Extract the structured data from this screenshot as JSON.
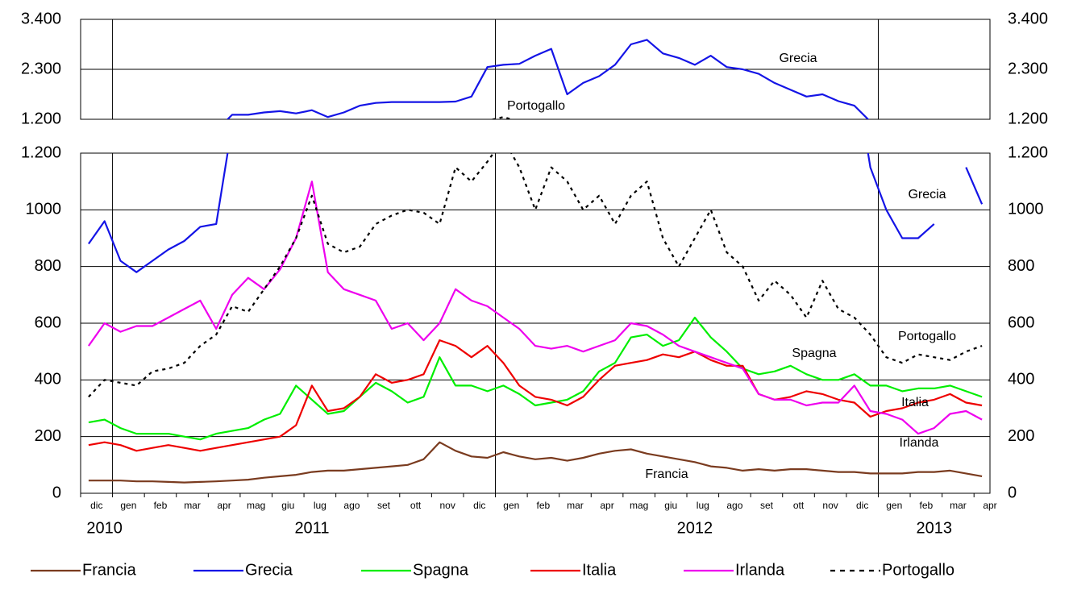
{
  "chart_data": {
    "type": "line",
    "categories": [
      "dic",
      null,
      "gen",
      null,
      "feb",
      null,
      "mar",
      null,
      "apr",
      null,
      "mag",
      null,
      "giu",
      null,
      "lug",
      null,
      "ago",
      null,
      "set",
      null,
      "ott",
      null,
      "nov",
      null,
      "dic",
      null,
      "gen",
      null,
      "feb",
      null,
      "mar",
      null,
      "apr",
      null,
      "mag",
      null,
      "giu",
      null,
      "lug",
      null,
      "ago",
      null,
      "set",
      null,
      "ott",
      null,
      "nov",
      null,
      "dic",
      null,
      "gen",
      null,
      "feb",
      null,
      "mar",
      null,
      "apr"
    ],
    "year_labels": [
      "2010",
      "2011",
      "2012",
      "2013"
    ],
    "panels": [
      {
        "ylim": [
          1200,
          3400
        ],
        "yticks": [
          {
            "value": 1200,
            "label": "1.200"
          },
          {
            "value": 2300,
            "label": "2.300"
          },
          {
            "value": 3400,
            "label": "3.400"
          }
        ]
      },
      {
        "ylim": [
          0,
          1200
        ],
        "yticks": [
          0,
          200,
          400,
          600,
          800,
          1000,
          {
            "value": 1200,
            "label": "1.200"
          }
        ]
      }
    ],
    "grid": true,
    "legend": "bottom",
    "series": [
      {
        "name": "Francia",
        "color": "#7a3b1f",
        "dashed": false,
        "values": [
          45,
          45,
          45,
          42,
          42,
          40,
          38,
          40,
          42,
          45,
          48,
          55,
          60,
          65,
          75,
          80,
          80,
          85,
          90,
          95,
          100,
          120,
          180,
          150,
          130,
          125,
          145,
          130,
          120,
          125,
          115,
          125,
          140,
          150,
          155,
          140,
          130,
          120,
          110,
          95,
          90,
          80,
          85,
          80,
          85,
          85,
          80,
          75,
          75,
          70,
          70,
          70,
          75,
          75,
          80,
          70,
          60
        ]
      },
      {
        "name": "Grecia",
        "color": "#1414e6",
        "dashed": false,
        "values": [
          880,
          960,
          820,
          780,
          820,
          860,
          890,
          940,
          950,
          1300,
          1300,
          1350,
          1380,
          1330,
          1400,
          1250,
          1350,
          1500,
          1560,
          1580,
          1580,
          1580,
          1580,
          1590,
          1700,
          2350,
          2400,
          2420,
          2600,
          2750,
          1750,
          2000,
          2150,
          2400,
          2850,
          2950,
          2650,
          2550,
          2400,
          2600,
          2350,
          2300,
          2200,
          2000,
          1850,
          1700,
          1750,
          1600,
          1500,
          1150,
          1000,
          900,
          900,
          950,
          null,
          1150,
          1020
        ]
      },
      {
        "name": "Spagna",
        "color": "#00ee00",
        "dashed": false,
        "values": [
          250,
          260,
          230,
          210,
          210,
          210,
          200,
          190,
          210,
          220,
          230,
          260,
          280,
          380,
          330,
          280,
          290,
          340,
          390,
          360,
          320,
          340,
          480,
          380,
          380,
          360,
          380,
          350,
          310,
          320,
          330,
          360,
          430,
          460,
          550,
          560,
          520,
          540,
          620,
          550,
          500,
          440,
          420,
          430,
          450,
          420,
          400,
          400,
          420,
          380,
          380,
          360,
          370,
          370,
          380,
          360,
          340
        ]
      },
      {
        "name": "Italia",
        "color": "#ee0000",
        "dashed": false,
        "values": [
          170,
          180,
          170,
          150,
          160,
          170,
          160,
          150,
          160,
          170,
          180,
          190,
          200,
          240,
          380,
          290,
          300,
          340,
          420,
          390,
          400,
          420,
          540,
          520,
          480,
          520,
          460,
          380,
          340,
          330,
          310,
          340,
          400,
          450,
          460,
          470,
          490,
          480,
          500,
          470,
          450,
          450,
          350,
          330,
          340,
          360,
          350,
          330,
          320,
          270,
          290,
          300,
          320,
          330,
          350,
          320,
          310
        ]
      },
      {
        "name": "Irlanda",
        "color": "#ee00ee",
        "dashed": false,
        "values": [
          520,
          600,
          570,
          590,
          590,
          620,
          650,
          680,
          580,
          700,
          760,
          720,
          790,
          900,
          1100,
          780,
          720,
          700,
          680,
          580,
          600,
          540,
          600,
          720,
          680,
          660,
          620,
          580,
          520,
          510,
          520,
          500,
          520,
          540,
          600,
          590,
          560,
          520,
          500,
          480,
          460,
          440,
          350,
          330,
          330,
          310,
          320,
          320,
          380,
          290,
          280,
          260,
          210,
          230,
          280,
          290,
          260
        ]
      },
      {
        "name": "Portogallo",
        "color": "#000000",
        "dashed": true,
        "values": [
          340,
          400,
          390,
          380,
          430,
          440,
          460,
          520,
          560,
          660,
          640,
          720,
          800,
          900,
          1050,
          880,
          850,
          870,
          950,
          980,
          1000,
          990,
          950,
          1150,
          1100,
          1170,
          1250,
          1150,
          1000,
          1150,
          1100,
          1000,
          1050,
          950,
          1050,
          1100,
          900,
          800,
          900,
          1000,
          850,
          800,
          680,
          750,
          700,
          620,
          750,
          650,
          620,
          560,
          480,
          460,
          490,
          480,
          470,
          500,
          520
        ]
      }
    ],
    "annotations": [
      "Grecia",
      "Portogallo",
      "Grecia",
      "Portogallo",
      "Spagna",
      "Italia",
      "Irlanda",
      "Francia"
    ]
  }
}
